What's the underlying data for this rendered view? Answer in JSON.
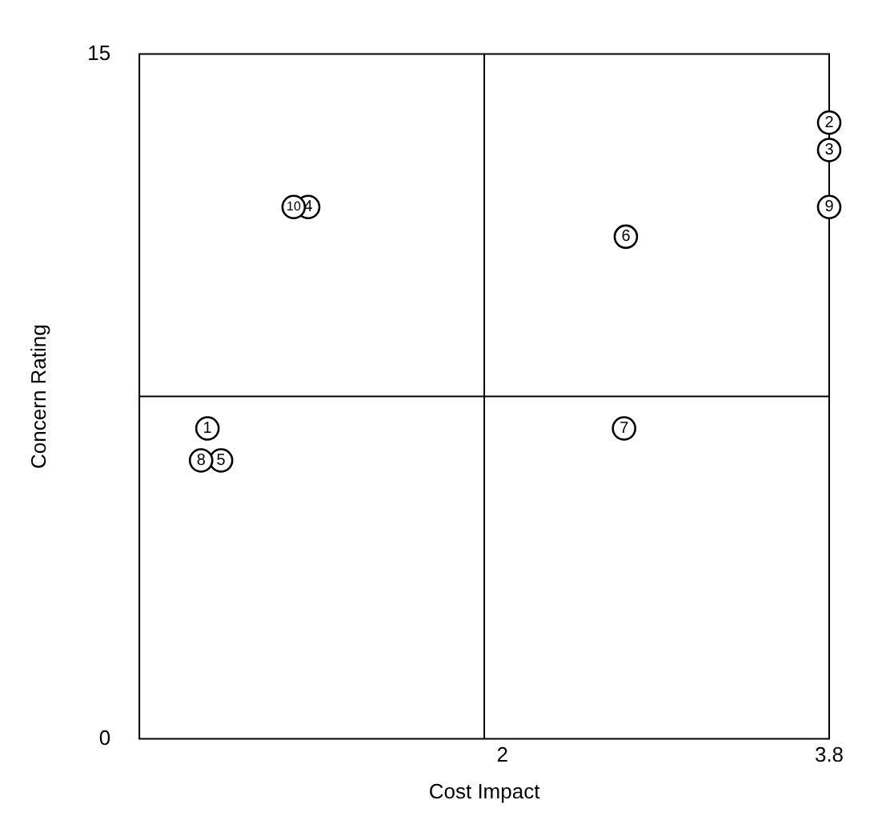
{
  "chart_data": {
    "type": "scatter",
    "xlabel": "Cost Impact",
    "ylabel": "Concern Rating",
    "xlim": [
      0,
      3.8
    ],
    "xticks": [
      2,
      3.8
    ],
    "ylim": [
      0,
      15
    ],
    "yticks": [
      0,
      15
    ],
    "grid": false,
    "legend": false,
    "marker": "circle",
    "x": [
      0.375,
      3.8,
      3.8,
      0.93,
      0.45,
      2.68,
      2.67,
      0.34,
      3.8,
      0.85
    ],
    "series": [
      {
        "color": "#000000",
        "values": [
          6.8,
          13.5,
          12.9,
          11.65,
          6.1,
          11.0,
          6.8,
          6.1,
          11.65,
          11.65
        ]
      }
    ],
    "ref_lines": [
      {
        "axis": "x",
        "value": 1.9,
        "color": "#000000"
      },
      {
        "axis": "y",
        "value": 7.5,
        "color": "#000000"
      }
    ],
    "annotations": [
      {
        "text": "1",
        "x": 0.375,
        "y": 6.8
      },
      {
        "text": "2",
        "x": 3.8,
        "y": 13.5
      },
      {
        "text": "3",
        "x": 3.8,
        "y": 12.9
      },
      {
        "text": "4",
        "x": 0.93,
        "y": 11.65
      },
      {
        "text": "5",
        "x": 0.45,
        "y": 6.1
      },
      {
        "text": "6",
        "x": 2.68,
        "y": 11.0
      },
      {
        "text": "7",
        "x": 2.67,
        "y": 6.8
      },
      {
        "text": "8",
        "x": 0.34,
        "y": 6.1
      },
      {
        "text": "9",
        "x": 3.8,
        "y": 11.65
      },
      {
        "text": "10",
        "x": 0.85,
        "y": 11.65
      }
    ]
  }
}
